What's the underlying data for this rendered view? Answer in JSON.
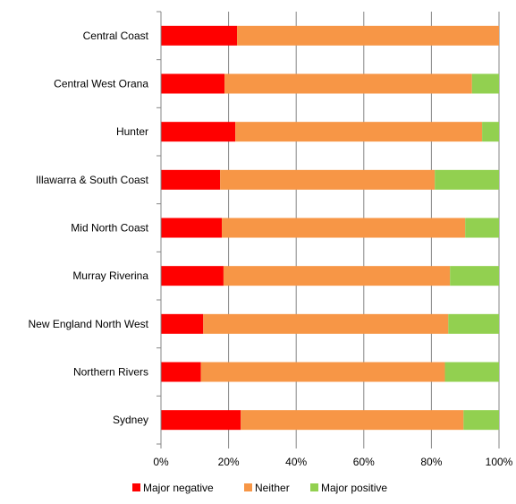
{
  "chart_data": {
    "type": "bar",
    "orientation": "horizontal",
    "stacked": true,
    "percent": true,
    "categories": [
      "Central Coast",
      "Central West Orana",
      "Hunter",
      "Illawarra & South Coast",
      "Mid North Coast",
      "Murray Riverina",
      "New England North West",
      "Northern Rivers",
      "Sydney"
    ],
    "series": [
      {
        "name": "Major negative",
        "color": "#ff0000",
        "values": [
          22.5,
          18.8,
          22.0,
          17.5,
          18.0,
          18.5,
          12.5,
          11.8,
          23.6
        ]
      },
      {
        "name": "Neither",
        "color": "#f79646",
        "values": [
          77.5,
          73.2,
          73.0,
          63.5,
          72.0,
          67.0,
          72.5,
          72.2,
          65.9
        ]
      },
      {
        "name": "Major positive",
        "color": "#92d050",
        "values": [
          0.0,
          8.0,
          5.0,
          19.0,
          10.0,
          14.5,
          15.0,
          16.0,
          10.5
        ]
      }
    ],
    "x_ticks": [
      "0%",
      "20%",
      "40%",
      "60%",
      "80%",
      "100%"
    ],
    "xlim": [
      0,
      100
    ],
    "grid": "vertical",
    "legend_position": "bottom",
    "title": "",
    "xlabel": "",
    "ylabel": ""
  }
}
